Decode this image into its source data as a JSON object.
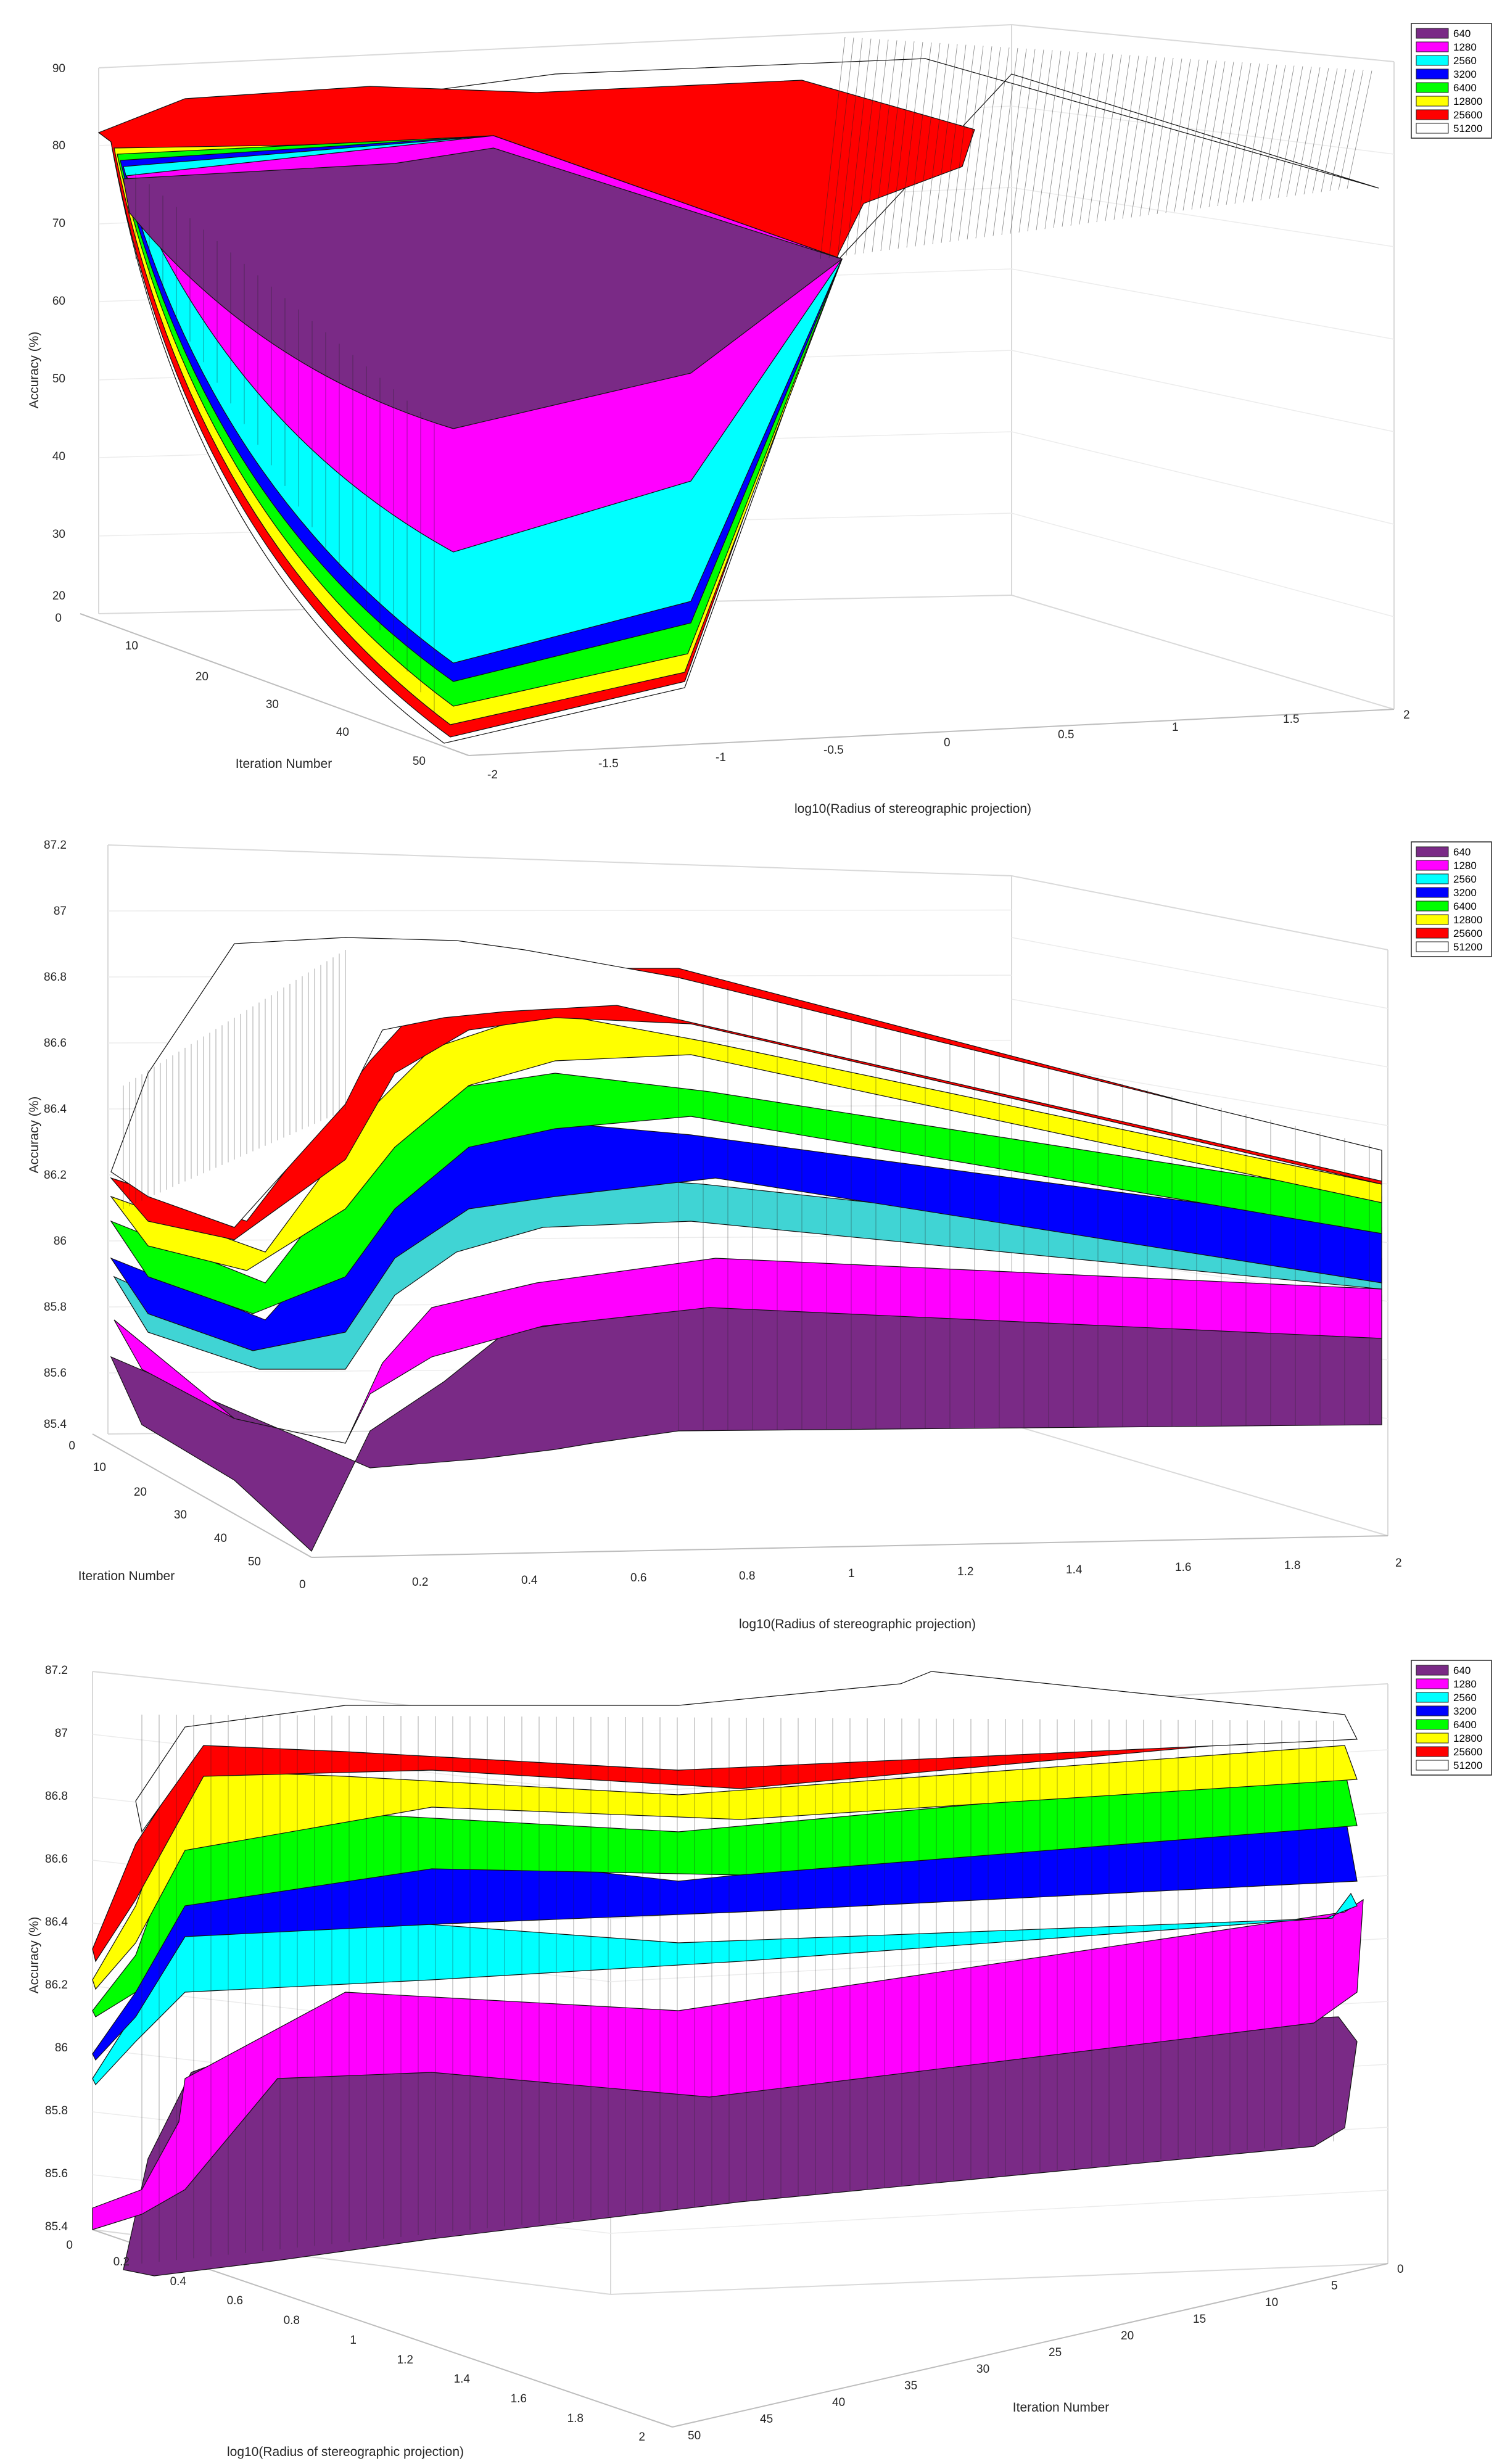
{
  "legend": [
    {
      "label": "640",
      "color": "#7a2a86"
    },
    {
      "label": "1280",
      "color": "#ff00ff"
    },
    {
      "label": "2560",
      "color": "#00ffff"
    },
    {
      "label": "3200",
      "color": "#0000ff"
    },
    {
      "label": "6400",
      "color": "#00ff00"
    },
    {
      "label": "12800",
      "color": "#ffff00"
    },
    {
      "label": "25600",
      "color": "#ff0000"
    },
    {
      "label": "51200",
      "color": "#ffffff"
    }
  ],
  "chart_data": [
    {
      "type": "surface",
      "ylabel": "Accuracy (%)",
      "xlabel": "log10(Radius of stereographic projection)",
      "iter_label": "Iteration Number",
      "zlim": [
        20,
        90
      ],
      "z_ticks": [
        "20",
        "30",
        "40",
        "50",
        "60",
        "70",
        "80",
        "90"
      ],
      "radius_ticks": [
        "-2",
        "-1.5",
        "-1",
        "-0.5",
        "0",
        "0.5",
        "1",
        "1.5",
        "2"
      ],
      "iter_ticks": [
        "0",
        "10",
        "20",
        "30",
        "40",
        "50"
      ],
      "series": [
        {
          "name": "640",
          "min_accuracy": 44
        },
        {
          "name": "1280",
          "min_accuracy": 35
        },
        {
          "name": "2560",
          "min_accuracy": 27
        },
        {
          "name": "3200",
          "min_accuracy": 24
        },
        {
          "name": "6400",
          "min_accuracy": 22
        },
        {
          "name": "12800",
          "min_accuracy": 21
        },
        {
          "name": "25600",
          "min_accuracy": 20.5
        },
        {
          "name": "51200",
          "min_accuracy": 20.3
        }
      ]
    },
    {
      "type": "surface",
      "ylabel": "Accuracy (%)",
      "xlabel": "log10(Radius of stereographic projection)",
      "iter_label": "Iteration Number",
      "zlim": [
        85.4,
        87.2
      ],
      "z_ticks": [
        "85.4",
        "85.6",
        "85.8",
        "86",
        "86.2",
        "86.4",
        "86.6",
        "86.8",
        "87",
        "87.2"
      ],
      "radius_ticks": [
        "0",
        "0.2",
        "0.4",
        "0.6",
        "0.8",
        "1",
        "1.2",
        "1.4",
        "1.6",
        "1.8",
        "2"
      ],
      "iter_ticks": [
        "0",
        "10",
        "20",
        "30",
        "40",
        "50"
      ],
      "series": [
        {
          "name": "640",
          "plateau": 85.6
        },
        {
          "name": "1280",
          "plateau": 85.9
        },
        {
          "name": "2560",
          "plateau": 86.15
        },
        {
          "name": "3200",
          "plateau": 86.3
        },
        {
          "name": "6400",
          "plateau": 86.55
        },
        {
          "name": "12800",
          "plateau": 86.7
        },
        {
          "name": "25600",
          "plateau": 87.0
        },
        {
          "name": "51200",
          "plateau": 86.95
        }
      ]
    },
    {
      "type": "surface",
      "ylabel": "Accuracy (%)",
      "xlabel": "log10(Radius of stereographic projection)",
      "iter_label": "Iteration Number",
      "zlim": [
        85.4,
        87.2
      ],
      "z_ticks": [
        "85.4",
        "85.6",
        "85.8",
        "86",
        "86.2",
        "86.4",
        "86.6",
        "86.8",
        "87",
        "87.2"
      ],
      "radius_ticks": [
        "0",
        "0.2",
        "0.4",
        "0.6",
        "0.8",
        "1",
        "1.2",
        "1.4",
        "1.6",
        "1.8",
        "2"
      ],
      "iter_ticks": [
        "0",
        "5",
        "10",
        "15",
        "20",
        "25",
        "30",
        "35",
        "40",
        "45",
        "50"
      ],
      "series": [
        {
          "name": "640",
          "plateau": 85.75
        },
        {
          "name": "1280",
          "plateau": 86.1
        },
        {
          "name": "2560",
          "plateau": 86.35
        },
        {
          "name": "3200",
          "plateau": 86.45
        },
        {
          "name": "6400",
          "plateau": 86.65
        },
        {
          "name": "12800",
          "plateau": 86.8
        },
        {
          "name": "25600",
          "plateau": 86.95
        },
        {
          "name": "51200",
          "plateau": 87.05
        }
      ]
    }
  ]
}
